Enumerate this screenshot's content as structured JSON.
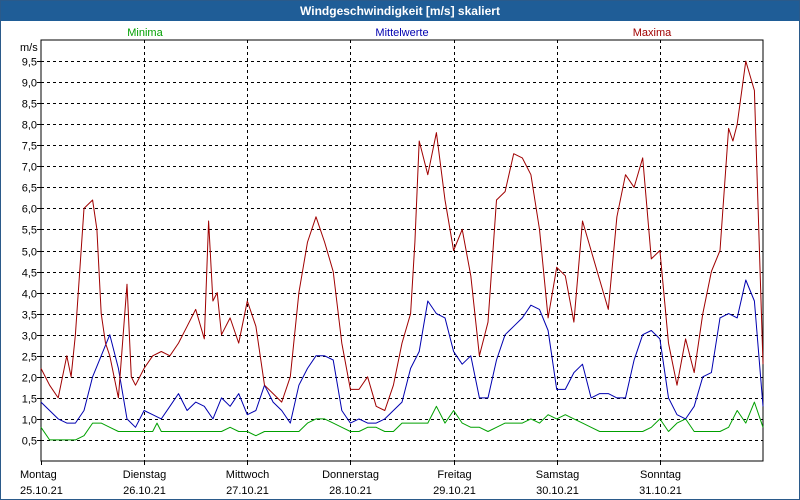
{
  "window": {
    "title": "Windgeschwindigkeit [m/s] skaliert"
  },
  "chart_data": {
    "type": "line",
    "title": "Windgeschwindigkeit [m/s] skaliert",
    "ylabel": "m/s",
    "ylim": [
      0,
      10
    ],
    "xlim": [
      0,
      168
    ],
    "yticks": [
      0.5,
      1.0,
      1.5,
      2.0,
      2.5,
      3.0,
      3.5,
      4.0,
      4.5,
      5.0,
      5.5,
      6.0,
      6.5,
      7.0,
      7.5,
      8.0,
      8.5,
      9.0,
      9.5
    ],
    "ytick_labels": [
      "0,5",
      "1,0",
      "1,5",
      "2,0",
      "2,5",
      "3,0",
      "3,5",
      "4,0",
      "4,5",
      "5,0",
      "5,5",
      "6,0",
      "6,5",
      "7,0",
      "7,5",
      "8,0",
      "8,5",
      "9,0",
      "9,5"
    ],
    "x_days": [
      {
        "day": "Montag",
        "date": "25.10.21"
      },
      {
        "day": "Dienstag",
        "date": "26.10.21"
      },
      {
        "day": "Mittwoch",
        "date": "27.10.21"
      },
      {
        "day": "Donnerstag",
        "date": "28.10.21"
      },
      {
        "day": "Freitag",
        "date": "29.10.21"
      },
      {
        "day": "Samstag",
        "date": "30.10.21"
      },
      {
        "day": "Sonntag",
        "date": "31.10.21"
      }
    ],
    "series": [
      {
        "name": "Minima",
        "color": "#00a000",
        "x": [
          0,
          2,
          4,
          6,
          8,
          10,
          12,
          14,
          16,
          18,
          20,
          22,
          24,
          26,
          27,
          28,
          30,
          32,
          34,
          36,
          38,
          40,
          42,
          44,
          46,
          48,
          50,
          52,
          54,
          56,
          58,
          60,
          62,
          64,
          66,
          68,
          70,
          72,
          74,
          76,
          78,
          80,
          81,
          82,
          84,
          86,
          88,
          90,
          92,
          94,
          96,
          98,
          100,
          102,
          104,
          106,
          108,
          110,
          112,
          114,
          116,
          118,
          120,
          122,
          124,
          126,
          128,
          130,
          132,
          134,
          136,
          138,
          140,
          142,
          144,
          146,
          148,
          150,
          152,
          154,
          156,
          158,
          160,
          162,
          164,
          166,
          168
        ],
        "values": [
          0.8,
          0.5,
          0.5,
          0.5,
          0.5,
          0.6,
          0.9,
          0.9,
          0.8,
          0.7,
          0.7,
          0.7,
          0.7,
          0.7,
          0.9,
          0.7,
          0.7,
          0.7,
          0.7,
          0.7,
          0.7,
          0.7,
          0.7,
          0.8,
          0.7,
          0.7,
          0.6,
          0.7,
          0.7,
          0.7,
          0.7,
          0.7,
          0.9,
          1.0,
          1.0,
          0.9,
          0.8,
          0.7,
          0.7,
          0.8,
          0.8,
          0.7,
          0.7,
          0.7,
          0.9,
          0.9,
          0.9,
          0.9,
          1.3,
          0.9,
          1.2,
          0.9,
          0.8,
          0.8,
          0.7,
          0.8,
          0.9,
          0.9,
          0.9,
          1.0,
          0.9,
          1.1,
          1.0,
          1.1,
          1.0,
          0.9,
          0.8,
          0.7,
          0.7,
          0.7,
          0.7,
          0.7,
          0.7,
          0.8,
          1.0,
          0.7,
          0.9,
          1.0,
          0.7,
          0.7,
          0.7,
          0.7,
          0.8,
          1.2,
          0.9,
          1.4,
          0.8
        ]
      },
      {
        "name": "Mittelwerte",
        "color": "#0000b0",
        "x": [
          0,
          2,
          4,
          6,
          8,
          10,
          12,
          14,
          16,
          18,
          20,
          22,
          24,
          26,
          28,
          30,
          32,
          34,
          36,
          38,
          40,
          42,
          44,
          46,
          48,
          50,
          52,
          54,
          56,
          58,
          60,
          62,
          64,
          66,
          68,
          70,
          72,
          74,
          76,
          78,
          80,
          82,
          84,
          86,
          88,
          90,
          92,
          94,
          96,
          98,
          100,
          102,
          104,
          106,
          108,
          110,
          112,
          114,
          116,
          118,
          120,
          122,
          124,
          126,
          128,
          130,
          132,
          134,
          136,
          138,
          140,
          142,
          144,
          146,
          148,
          150,
          152,
          154,
          156,
          158,
          160,
          162,
          164,
          166,
          168
        ],
        "values": [
          1.4,
          1.2,
          1.0,
          0.9,
          0.9,
          1.2,
          2.0,
          2.5,
          3.0,
          2.2,
          1.0,
          0.8,
          1.2,
          1.1,
          1.0,
          1.3,
          1.6,
          1.2,
          1.4,
          1.3,
          1.0,
          1.5,
          1.3,
          1.6,
          1.1,
          1.2,
          1.8,
          1.4,
          1.2,
          0.9,
          1.8,
          2.2,
          2.5,
          2.5,
          2.4,
          1.2,
          0.9,
          1.0,
          0.9,
          0.9,
          1.0,
          1.2,
          1.4,
          2.2,
          2.6,
          3.8,
          3.5,
          3.4,
          2.6,
          2.3,
          2.5,
          1.5,
          1.5,
          2.4,
          3.0,
          3.2,
          3.4,
          3.7,
          3.6,
          3.1,
          1.7,
          1.7,
          2.1,
          2.3,
          1.5,
          1.6,
          1.6,
          1.5,
          1.5,
          2.4,
          3.0,
          3.1,
          2.9,
          1.5,
          1.1,
          1.0,
          1.3,
          2.0,
          2.1,
          3.4,
          3.5,
          3.4,
          4.3,
          3.8,
          1.3
        ]
      },
      {
        "name": "Maxima",
        "color": "#a00000",
        "x": [
          0,
          2,
          4,
          6,
          7,
          8,
          10,
          12,
          13,
          14,
          15,
          16,
          18,
          20,
          21,
          22,
          24,
          26,
          28,
          30,
          32,
          34,
          36,
          38,
          39,
          40,
          41,
          42,
          44,
          46,
          48,
          50,
          52,
          54,
          56,
          58,
          60,
          62,
          64,
          66,
          68,
          70,
          72,
          74,
          76,
          78,
          80,
          82,
          84,
          86,
          87,
          88,
          90,
          92,
          94,
          96,
          98,
          100,
          102,
          104,
          106,
          108,
          110,
          112,
          114,
          116,
          118,
          120,
          122,
          124,
          126,
          128,
          130,
          132,
          134,
          136,
          138,
          140,
          142,
          144,
          146,
          148,
          150,
          152,
          154,
          156,
          158,
          160,
          161,
          162,
          164,
          166,
          168
        ],
        "values": [
          2.2,
          1.8,
          1.5,
          2.5,
          2.0,
          3.0,
          6.0,
          6.2,
          5.5,
          3.5,
          2.8,
          2.5,
          1.5,
          4.2,
          2.0,
          1.8,
          2.2,
          2.5,
          2.6,
          2.5,
          2.8,
          3.2,
          3.6,
          2.9,
          5.7,
          3.8,
          4.0,
          3.0,
          3.4,
          2.8,
          3.8,
          3.2,
          1.8,
          1.6,
          1.4,
          2.0,
          4.0,
          5.2,
          5.8,
          5.2,
          4.5,
          2.8,
          1.7,
          1.7,
          2.0,
          1.3,
          1.2,
          1.8,
          2.8,
          3.5,
          5.2,
          7.6,
          6.8,
          7.8,
          6.2,
          5.0,
          5.5,
          4.4,
          2.5,
          3.3,
          6.2,
          6.4,
          7.3,
          7.2,
          6.8,
          5.5,
          3.4,
          4.6,
          4.4,
          3.3,
          5.7,
          5.0,
          4.3,
          3.6,
          5.8,
          6.8,
          6.5,
          7.2,
          4.8,
          5.0,
          2.8,
          1.8,
          2.9,
          2.1,
          3.5,
          4.5,
          5.0,
          7.9,
          7.6,
          8.0,
          9.5,
          8.8,
          2.3
        ]
      }
    ]
  }
}
